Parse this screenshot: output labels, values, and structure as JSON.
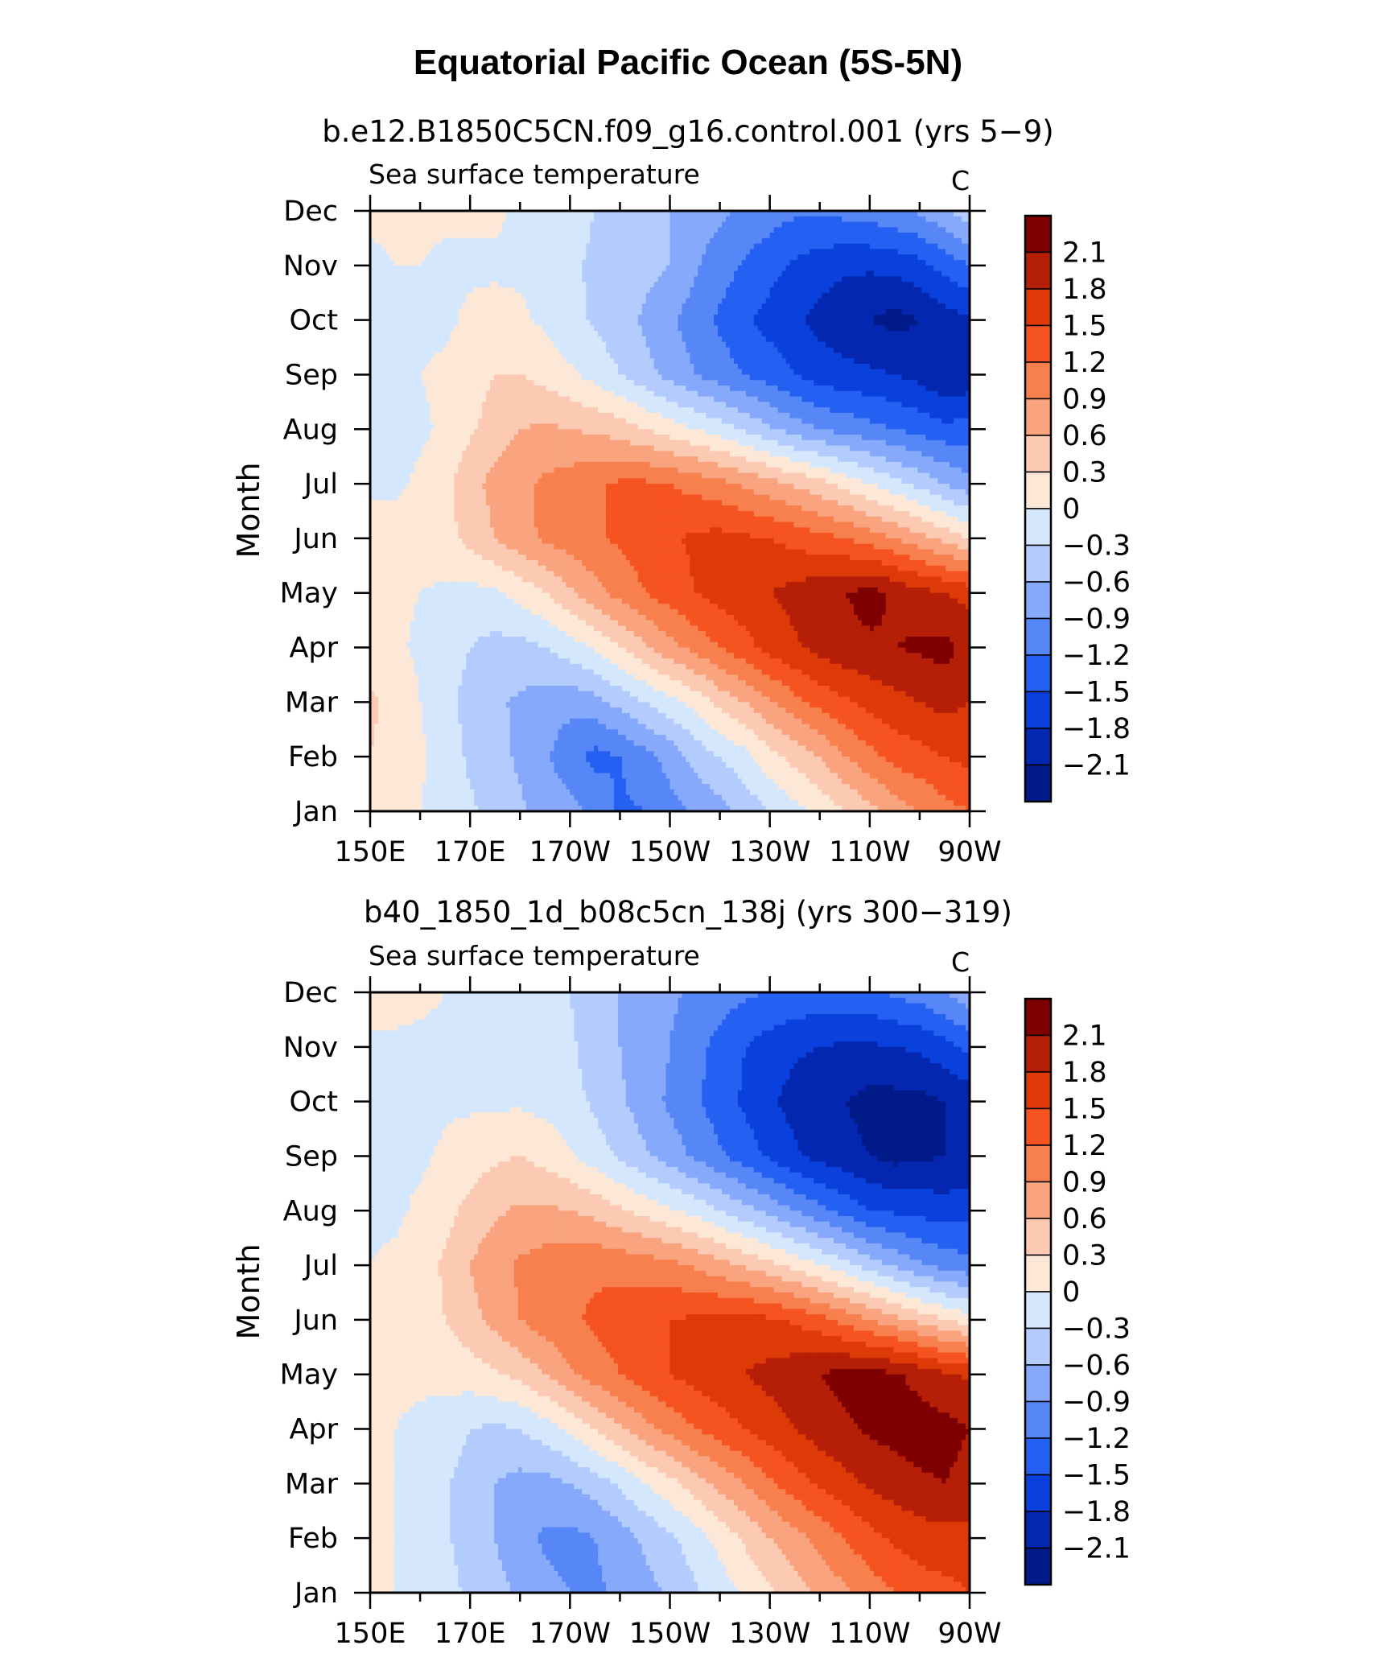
{
  "figure": {
    "title": "Equatorial Pacific Ocean (5S-5N)"
  },
  "colorbar": {
    "levels": [
      "2.1",
      "1.8",
      "1.5",
      "1.2",
      "0.9",
      "0.6",
      "0.3",
      "0",
      "−0.3",
      "−0.6",
      "−0.9",
      "−1.2",
      "−1.5",
      "−1.8",
      "−2.1"
    ],
    "colors": [
      "#7f0000",
      "#b51f07",
      "#de3a08",
      "#f55320",
      "#f7804e",
      "#f9a47f",
      "#fcc9b2",
      "#fde8d8",
      "#d4e7fd",
      "#b4ccfd",
      "#86a9fb",
      "#5787f6",
      "#2460f2",
      "#0a41dc",
      "#0427b0",
      "#001a8a"
    ]
  },
  "chart_data": [
    {
      "type": "heatmap",
      "title": "b.e12.B1850C5CN.f09_g16.control.001 (yrs 5−9)",
      "left_string": "Sea surface temperature",
      "right_string": "C",
      "ylabel": "Month",
      "x_tick_labels": [
        "150E",
        "170E",
        "170W",
        "150W",
        "130W",
        "110W",
        "90W"
      ],
      "x_tick_values": [
        150,
        170,
        190,
        210,
        230,
        250,
        270
      ],
      "xlim": [
        150,
        270
      ],
      "y_tick_labels": [
        "Jan",
        "Feb",
        "Mar",
        "Apr",
        "May",
        "Jun",
        "Jul",
        "Aug",
        "Sep",
        "Oct",
        "Nov",
        "Dec"
      ],
      "ylim": [
        1,
        12
      ],
      "x": [
        150,
        155,
        160,
        165,
        170,
        175,
        180,
        185,
        190,
        195,
        200,
        205,
        210,
        215,
        220,
        225,
        230,
        235,
        240,
        245,
        250,
        255,
        260,
        265,
        270
      ],
      "months": [
        1,
        2,
        3,
        4,
        5,
        6,
        7,
        8,
        9,
        10,
        11,
        12
      ],
      "values": [
        [
          0.1,
          0.05,
          0.0,
          -0.1,
          -0.25,
          -0.4,
          -0.55,
          -0.7,
          -0.8,
          -0.95,
          -1.25,
          -1.2,
          -1.0,
          -0.85,
          -0.7,
          -0.5,
          -0.3,
          -0.1,
          0.1,
          0.3,
          0.5,
          0.75,
          0.9,
          1.1,
          1.2
        ],
        [
          0.3,
          0.2,
          0.05,
          -0.15,
          -0.35,
          -0.5,
          -0.65,
          -0.85,
          -1.1,
          -1.3,
          -1.2,
          -1.0,
          -0.8,
          -0.5,
          -0.3,
          -0.1,
          0.2,
          0.4,
          0.6,
          0.9,
          1.1,
          1.3,
          1.4,
          1.5,
          1.6
        ],
        [
          0.35,
          0.2,
          0.0,
          -0.2,
          -0.4,
          -0.55,
          -0.65,
          -0.75,
          -0.8,
          -0.7,
          -0.5,
          -0.3,
          -0.1,
          0.1,
          0.4,
          0.6,
          0.85,
          1.1,
          1.3,
          1.45,
          1.6,
          1.7,
          1.8,
          1.9,
          1.8
        ],
        [
          0.15,
          0.05,
          -0.05,
          -0.15,
          -0.3,
          -0.4,
          -0.4,
          -0.3,
          -0.15,
          0.05,
          0.3,
          0.55,
          0.8,
          1.0,
          1.2,
          1.4,
          1.6,
          1.75,
          1.9,
          2.0,
          2.05,
          2.1,
          2.15,
          2.2,
          2.0
        ],
        [
          0.1,
          0.05,
          0.0,
          -0.05,
          -0.1,
          -0.05,
          0.1,
          0.3,
          0.55,
          0.8,
          1.0,
          1.2,
          1.35,
          1.5,
          1.6,
          1.7,
          1.8,
          1.9,
          2.0,
          2.1,
          2.2,
          2.05,
          1.9,
          1.8,
          1.7
        ],
        [
          0.15,
          0.1,
          0.1,
          0.2,
          0.4,
          0.6,
          0.8,
          0.95,
          1.05,
          1.15,
          1.25,
          1.35,
          1.45,
          1.55,
          1.6,
          1.55,
          1.5,
          1.4,
          1.3,
          1.2,
          1.05,
          0.9,
          0.7,
          0.5,
          0.3
        ],
        [
          -0.05,
          -0.05,
          0.05,
          0.2,
          0.5,
          0.7,
          0.85,
          0.95,
          1.05,
          1.15,
          1.25,
          1.25,
          1.2,
          1.1,
          1.0,
          0.85,
          0.7,
          0.55,
          0.4,
          0.2,
          0.0,
          -0.2,
          -0.4,
          -0.6,
          -0.8
        ],
        [
          -0.1,
          -0.1,
          -0.05,
          0.05,
          0.25,
          0.45,
          0.6,
          0.65,
          0.6,
          0.55,
          0.45,
          0.3,
          0.15,
          0.0,
          -0.15,
          -0.35,
          -0.55,
          -0.75,
          -0.9,
          -1.0,
          -1.1,
          -1.2,
          -1.3,
          -1.4,
          -1.4
        ],
        [
          -0.1,
          -0.05,
          0.0,
          0.05,
          0.15,
          0.3,
          0.3,
          0.2,
          0.05,
          -0.1,
          -0.3,
          -0.5,
          -0.7,
          -0.9,
          -1.05,
          -1.2,
          -1.35,
          -1.5,
          -1.65,
          -1.7,
          -1.75,
          -1.8,
          -1.9,
          -2.1,
          -2.0
        ],
        [
          -0.05,
          -0.05,
          -0.05,
          -0.05,
          0.05,
          0.1,
          0.05,
          -0.05,
          -0.2,
          -0.35,
          -0.5,
          -0.65,
          -0.85,
          -1.05,
          -1.25,
          -1.45,
          -1.6,
          -1.75,
          -1.9,
          -2.0,
          -2.1,
          -2.2,
          -2.1,
          -1.95,
          -1.85
        ],
        [
          -0.05,
          0.0,
          0.0,
          -0.05,
          -0.05,
          -0.05,
          -0.05,
          -0.1,
          -0.25,
          -0.35,
          -0.4,
          -0.5,
          -0.6,
          -0.85,
          -1.05,
          -1.25,
          -1.4,
          -1.55,
          -1.65,
          -1.75,
          -1.75,
          -1.7,
          -1.6,
          -1.4,
          -1.2
        ],
        [
          0.05,
          0.05,
          0.05,
          0.05,
          0.05,
          0.05,
          -0.05,
          -0.1,
          -0.2,
          -0.3,
          -0.4,
          -0.5,
          -0.6,
          -0.75,
          -0.85,
          -0.95,
          -1.05,
          -1.15,
          -1.15,
          -1.1,
          -1.05,
          -0.95,
          -0.85,
          -0.65,
          -0.4
        ]
      ]
    },
    {
      "type": "heatmap",
      "title": "b40_1850_1d_b08c5cn_138j (yrs 300−319)",
      "left_string": "Sea surface temperature",
      "right_string": "C",
      "ylabel": "Month",
      "x_tick_labels": [
        "150E",
        "170E",
        "170W",
        "150W",
        "130W",
        "110W",
        "90W"
      ],
      "x_tick_values": [
        150,
        170,
        190,
        210,
        230,
        250,
        270
      ],
      "xlim": [
        150,
        270
      ],
      "y_tick_labels": [
        "Jan",
        "Feb",
        "Mar",
        "Apr",
        "May",
        "Jun",
        "Jul",
        "Aug",
        "Sep",
        "Oct",
        "Nov",
        "Dec"
      ],
      "ylim": [
        1,
        12
      ],
      "x": [
        150,
        155,
        160,
        165,
        170,
        175,
        180,
        185,
        190,
        195,
        200,
        205,
        210,
        215,
        220,
        225,
        230,
        235,
        240,
        245,
        250,
        255,
        260,
        265,
        270
      ],
      "months": [
        1,
        2,
        3,
        4,
        5,
        6,
        7,
        8,
        9,
        10,
        11,
        12
      ],
      "values": [
        [
          0.1,
          0.0,
          -0.1,
          -0.2,
          -0.35,
          -0.5,
          -0.65,
          -0.8,
          -0.9,
          -0.95,
          -0.85,
          -0.7,
          -0.55,
          -0.35,
          -0.15,
          0.05,
          0.25,
          0.45,
          0.65,
          0.85,
          1.05,
          1.2,
          1.35,
          1.4,
          1.5
        ],
        [
          0.1,
          0.0,
          -0.1,
          -0.25,
          -0.45,
          -0.6,
          -0.8,
          -0.95,
          -1.0,
          -0.9,
          -0.75,
          -0.55,
          -0.35,
          -0.15,
          0.1,
          0.35,
          0.6,
          0.8,
          1.0,
          1.2,
          1.4,
          1.55,
          1.65,
          1.7,
          1.7
        ],
        [
          0.1,
          0.0,
          -0.1,
          -0.25,
          -0.45,
          -0.6,
          -0.7,
          -0.7,
          -0.6,
          -0.45,
          -0.25,
          0.0,
          0.2,
          0.45,
          0.7,
          0.9,
          1.15,
          1.35,
          1.55,
          1.7,
          1.85,
          1.95,
          2.05,
          2.1,
          2.0
        ],
        [
          0.05,
          0.0,
          -0.05,
          -0.15,
          -0.3,
          -0.35,
          -0.3,
          -0.15,
          0.05,
          0.3,
          0.55,
          0.8,
          1.0,
          1.2,
          1.35,
          1.5,
          1.65,
          1.8,
          1.95,
          2.05,
          2.15,
          2.2,
          2.25,
          2.2,
          2.1
        ],
        [
          0.05,
          0.05,
          0.05,
          0.1,
          0.15,
          0.25,
          0.4,
          0.6,
          0.85,
          1.05,
          1.2,
          1.35,
          1.5,
          1.6,
          1.7,
          1.8,
          1.9,
          2.0,
          2.1,
          2.2,
          2.2,
          2.15,
          2.0,
          1.85,
          1.75
        ],
        [
          0.05,
          0.1,
          0.15,
          0.3,
          0.5,
          0.7,
          0.9,
          1.05,
          1.15,
          1.25,
          1.35,
          1.45,
          1.5,
          1.55,
          1.6,
          1.6,
          1.55,
          1.45,
          1.3,
          1.1,
          0.9,
          0.7,
          0.5,
          0.3,
          0.15
        ],
        [
          0.0,
          0.05,
          0.15,
          0.35,
          0.6,
          0.8,
          0.95,
          1.05,
          1.1,
          1.15,
          1.1,
          1.05,
          1.0,
          0.85,
          0.7,
          0.55,
          0.4,
          0.2,
          0.0,
          -0.2,
          -0.45,
          -0.65,
          -0.85,
          -1.0,
          -1.1
        ],
        [
          -0.05,
          -0.05,
          0.05,
          0.2,
          0.4,
          0.55,
          0.65,
          0.65,
          0.6,
          0.5,
          0.35,
          0.2,
          0.05,
          -0.1,
          -0.3,
          -0.5,
          -0.7,
          -0.9,
          -1.1,
          -1.3,
          -1.5,
          -1.55,
          -1.6,
          -1.65,
          -1.6
        ],
        [
          -0.1,
          -0.05,
          -0.05,
          0.05,
          0.15,
          0.25,
          0.3,
          0.2,
          0.05,
          -0.15,
          -0.35,
          -0.55,
          -0.75,
          -0.95,
          -1.15,
          -1.35,
          -1.55,
          -1.75,
          -1.9,
          -2.0,
          -2.1,
          -2.2,
          -2.15,
          -2.1,
          -2.05
        ],
        [
          -0.1,
          -0.1,
          -0.1,
          -0.05,
          -0.05,
          -0.05,
          -0.05,
          -0.1,
          -0.2,
          -0.35,
          -0.55,
          -0.75,
          -0.95,
          -1.15,
          -1.35,
          -1.55,
          -1.75,
          -1.9,
          -2.0,
          -2.1,
          -2.2,
          -2.2,
          -2.2,
          -2.1,
          -2.0
        ],
        [
          -0.05,
          -0.05,
          -0.05,
          -0.05,
          -0.05,
          -0.05,
          -0.05,
          -0.1,
          -0.25,
          -0.45,
          -0.6,
          -0.75,
          -0.9,
          -1.1,
          -1.3,
          -1.5,
          -1.65,
          -1.75,
          -1.8,
          -1.85,
          -1.85,
          -1.8,
          -1.75,
          -1.6,
          -1.4
        ],
        [
          0.1,
          0.1,
          0.05,
          0.0,
          -0.05,
          -0.1,
          -0.15,
          -0.2,
          -0.3,
          -0.45,
          -0.6,
          -0.75,
          -0.85,
          -0.95,
          -1.05,
          -1.15,
          -1.2,
          -1.25,
          -1.3,
          -1.3,
          -1.25,
          -1.15,
          -1.05,
          -0.9,
          -0.7
        ]
      ]
    }
  ]
}
